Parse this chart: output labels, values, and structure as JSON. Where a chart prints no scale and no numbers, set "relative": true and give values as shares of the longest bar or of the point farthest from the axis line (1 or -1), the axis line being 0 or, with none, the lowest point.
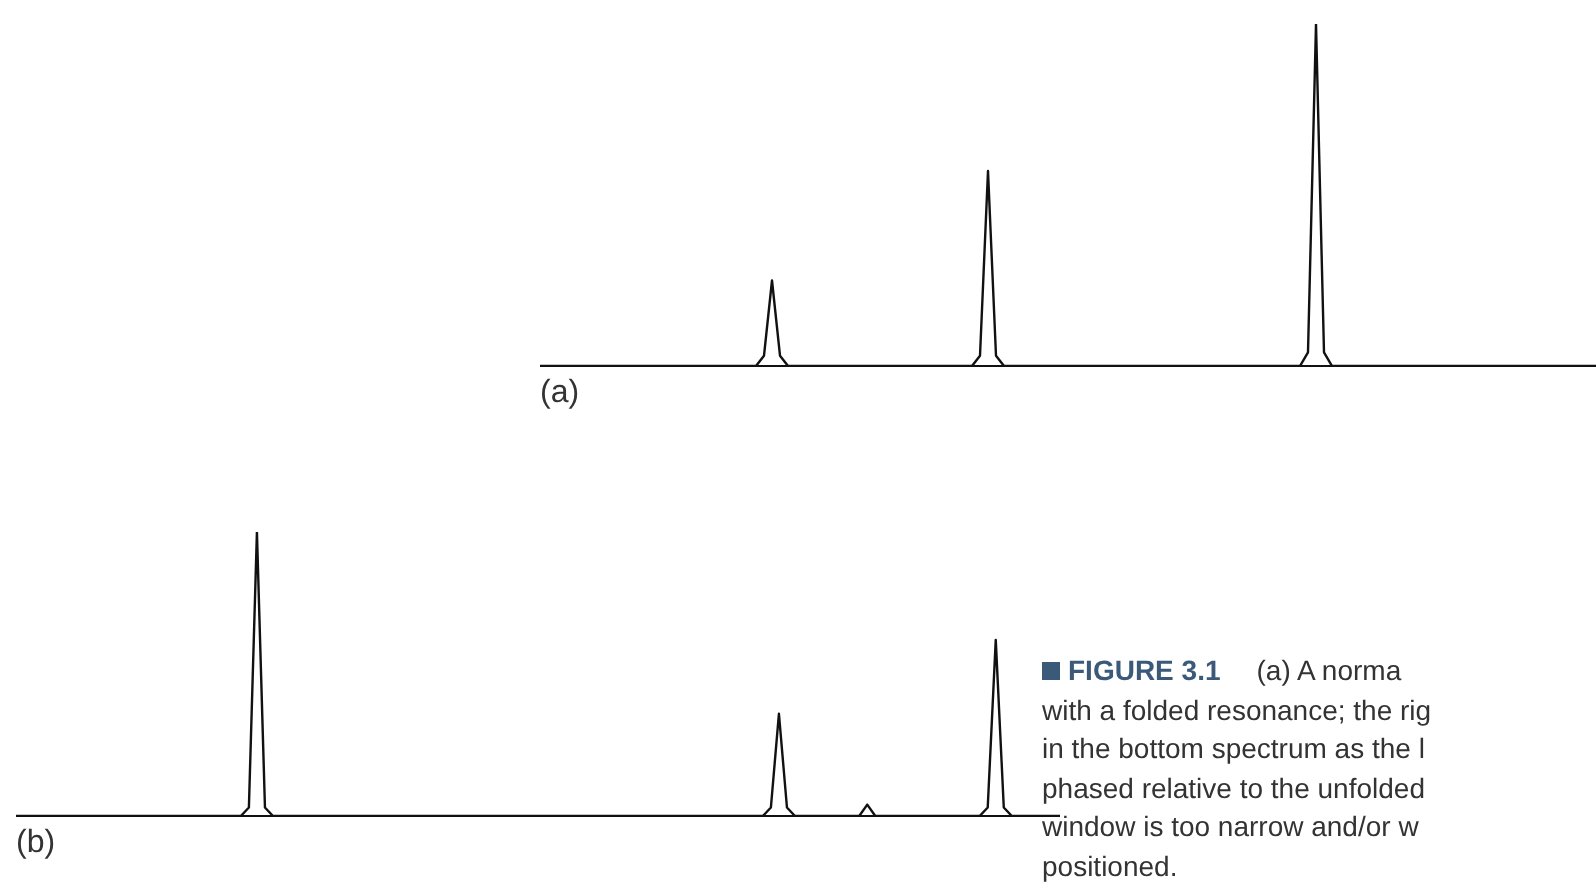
{
  "chart_data": [
    {
      "type": "line",
      "title": "(a)",
      "relative": true,
      "categories": [
        null,
        null,
        null,
        null,
        null,
        null,
        null,
        null,
        null,
        null,
        null,
        null,
        null,
        null,
        null,
        null,
        null,
        null,
        null,
        null,
        null,
        null,
        null,
        null,
        null,
        null,
        null,
        null,
        null,
        null,
        null,
        null,
        null,
        null,
        null,
        null,
        null,
        null,
        null,
        null,
        null,
        null,
        null,
        null,
        null,
        null,
        null,
        null,
        null,
        null,
        null,
        null,
        null,
        null,
        null,
        null,
        null,
        null,
        null,
        null,
        null,
        null,
        null,
        null,
        null,
        null,
        null,
        null,
        null,
        null,
        null,
        null,
        null,
        null,
        null,
        null,
        null,
        null,
        null,
        null,
        null,
        null,
        null,
        null,
        null,
        null,
        null,
        null,
        null,
        null,
        null,
        null,
        null,
        null,
        null,
        null,
        null,
        null,
        null,
        null,
        null,
        null,
        null,
        null,
        null,
        null,
        null,
        null,
        null,
        null,
        null,
        null,
        null,
        null,
        null,
        null,
        null,
        null,
        null,
        null,
        null,
        null,
        null,
        null,
        null,
        null,
        null,
        null,
        null,
        null,
        null,
        null,
        null
      ],
      "series": [
        {
          "color": "#111111",
          "values": [
            0,
            0,
            0,
            0,
            0,
            0,
            0,
            0,
            0,
            0,
            0,
            0,
            0,
            0,
            0,
            0,
            0,
            0,
            0,
            0,
            0,
            0,
            0,
            0,
            0,
            0,
            0,
            0,
            0.03,
            0.25,
            0.03,
            0,
            0,
            0,
            0,
            0,
            0,
            0,
            0,
            0,
            0,
            0,
            0,
            0,
            0,
            0,
            0,
            0,
            0,
            0,
            0,
            0,
            0,
            0,
            0,
            0.03,
            0.57,
            0.03,
            0,
            0,
            0,
            0,
            0,
            0,
            0,
            0,
            0,
            0,
            0,
            0,
            0,
            0,
            0,
            0,
            0,
            0,
            0,
            0,
            0,
            0,
            0,
            0,
            0,
            0,
            0,
            0,
            0,
            0,
            0,
            0,
            0,
            0,
            0,
            0,
            0,
            0,
            0.04,
            1,
            0.04,
            0,
            0,
            0,
            0,
            0,
            0,
            0,
            0,
            0,
            0,
            0,
            0,
            0,
            0,
            0,
            0,
            0,
            0,
            0,
            0,
            0,
            0,
            0,
            0,
            0,
            0,
            0,
            0,
            0,
            0,
            0,
            0,
            0,
            0
          ]
        }
      ]
    },
    {
      "type": "line",
      "title": "(b)",
      "relative": true,
      "categories": [
        null,
        null,
        null,
        null,
        null,
        null,
        null,
        null,
        null,
        null,
        null,
        null,
        null,
        null,
        null,
        null,
        null,
        null,
        null,
        null,
        null,
        null,
        null,
        null,
        null,
        null,
        null,
        null,
        null,
        null,
        null,
        null,
        null,
        null,
        null,
        null,
        null,
        null,
        null,
        null,
        null,
        null,
        null,
        null,
        null,
        null,
        null,
        null,
        null,
        null,
        null,
        null,
        null,
        null,
        null,
        null,
        null,
        null,
        null,
        null,
        null,
        null,
        null,
        null,
        null,
        null,
        null,
        null,
        null,
        null,
        null,
        null,
        null,
        null,
        null,
        null,
        null,
        null,
        null,
        null,
        null,
        null,
        null,
        null,
        null,
        null,
        null,
        null,
        null,
        null,
        null,
        null,
        null,
        null,
        null,
        null,
        null,
        null,
        null,
        null,
        null,
        null,
        null,
        null,
        null,
        null,
        null,
        null,
        null,
        null,
        null,
        null,
        null,
        null,
        null,
        null,
        null,
        null,
        null,
        null,
        null,
        null,
        null,
        null,
        null,
        null,
        null,
        null,
        null,
        null,
        null
      ],
      "series": [
        {
          "color": "#111111",
          "values": [
            0,
            0,
            0,
            0,
            0,
            0,
            0,
            0,
            0,
            0,
            0,
            0,
            0,
            0,
            0,
            0,
            0,
            0,
            0,
            0,
            0,
            0,
            0,
            0,
            0,
            0,
            0,
            0,
            0,
            0.03,
            1,
            0.03,
            0,
            0,
            0,
            0,
            0,
            0,
            0,
            0,
            0,
            0,
            0,
            0,
            0,
            0,
            0,
            0,
            0,
            0,
            0,
            0,
            0,
            0,
            0,
            0,
            0,
            0,
            0,
            0,
            0,
            0,
            0,
            0,
            0,
            0,
            0,
            0,
            0,
            0,
            0,
            0,
            0,
            0,
            0,
            0,
            0,
            0,
            0,
            0,
            0,
            0,
            0,
            0,
            0,
            0,
            0,
            0,
            0,
            0,
            0,
            0,
            0,
            0,
            0.03,
            0.36,
            0.03,
            0,
            0,
            0,
            0,
            0,
            0,
            0,
            0,
            0,
            0.04,
            0,
            0,
            0,
            0,
            0,
            0,
            0,
            0,
            0,
            0,
            0,
            0,
            0,
            0,
            0.03,
            0.62,
            0.03,
            0,
            0,
            0,
            0,
            0,
            0,
            0
          ]
        }
      ],
      "annotations": [
        "FIGURE 3.1",
        "(a) A norma",
        "with a folded resonance; the rig",
        "in the bottom spectrum as the l",
        "phased relative to the unfolded",
        "window is too narrow and/or w",
        "positioned."
      ]
    }
  ]
}
